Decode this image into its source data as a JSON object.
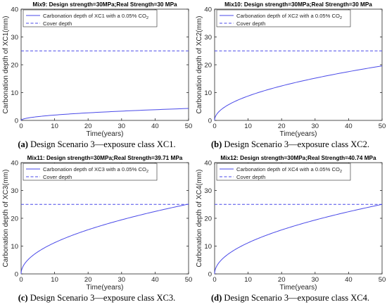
{
  "chart_data": [
    {
      "type": "line",
      "title": "Mix9: Design strength=30MPa;Real Strength=30 MPa",
      "xlabel": "Time(years)",
      "ylabel": "Carbonation depth of XC1(mm)",
      "xlim": [
        0,
        50
      ],
      "ylim": [
        0,
        40
      ],
      "xticks": [
        "0",
        "10",
        "20",
        "30",
        "40",
        "50"
      ],
      "yticks": [
        "0",
        "10",
        "20",
        "30",
        "40"
      ],
      "legend_position": "top-left",
      "series": [
        {
          "name": "Carbonation depth of XC1 with a 0.05% CO2",
          "label_text": "Carbonation depth of XC1 with a 0.05% CO",
          "label_sub": "2",
          "color": "#4a4ae8",
          "style": "solid",
          "model": "sqrt",
          "x": [
            0,
            50
          ],
          "y": [
            0,
            4.3
          ]
        },
        {
          "name": "Cover depth",
          "label_text": "Cover depth",
          "label_sub": "",
          "color": "#4a4ae8",
          "style": "dashed",
          "model": "const",
          "x": [
            0,
            50
          ],
          "y": [
            25,
            25
          ]
        }
      ],
      "caption_tag": "(a)",
      "caption_text": "Design Scenario 3—exposure class XC1."
    },
    {
      "type": "line",
      "title": "Mix10: Design strength=30MPa;Real Strength=30 MPa",
      "xlabel": "Time(years)",
      "ylabel": "Carbonation depth of XC2(mm)",
      "xlim": [
        0,
        50
      ],
      "ylim": [
        0,
        40
      ],
      "xticks": [
        "0",
        "10",
        "20",
        "30",
        "40",
        "50"
      ],
      "yticks": [
        "0",
        "10",
        "20",
        "30",
        "40"
      ],
      "legend_position": "top-left",
      "series": [
        {
          "name": "Carbonation depth of XC2 with a 0.05% CO2",
          "label_text": "Carbonation depth of XC2 with a 0.05% CO",
          "label_sub": "2",
          "color": "#4a4ae8",
          "style": "solid",
          "model": "sqrt",
          "x": [
            0,
            50
          ],
          "y": [
            0,
            19.6
          ]
        },
        {
          "name": "Cover depth",
          "label_text": "Cover depth",
          "label_sub": "",
          "color": "#4a4ae8",
          "style": "dashed",
          "model": "const",
          "x": [
            0,
            50
          ],
          "y": [
            25,
            25
          ]
        }
      ],
      "caption_tag": "(b)",
      "caption_text": "Design Scenario 3—exposure class XC2."
    },
    {
      "type": "line",
      "title": "Mix11: Design strength=30MPa;Real Strength=39.71 MPa",
      "xlabel": "Time(years)",
      "ylabel": "Carbonation depth of XC3(mm)",
      "xlim": [
        0,
        50
      ],
      "ylim": [
        0,
        40
      ],
      "xticks": [
        "0",
        "10",
        "20",
        "30",
        "40",
        "50"
      ],
      "yticks": [
        "0",
        "10",
        "20",
        "30",
        "40"
      ],
      "legend_position": "top-left",
      "series": [
        {
          "name": "Carbonation depth of XC3 with a 0.05% CO2",
          "label_text": "Carbonation depth of XC3 with a 0.05% CO",
          "label_sub": "2",
          "color": "#4a4ae8",
          "style": "solid",
          "model": "sqrt",
          "x": [
            0,
            50
          ],
          "y": [
            0,
            25.1
          ]
        },
        {
          "name": "Cover depth",
          "label_text": "Cover depth",
          "label_sub": "",
          "color": "#4a4ae8",
          "style": "dashed",
          "model": "const",
          "x": [
            0,
            50
          ],
          "y": [
            25,
            25
          ]
        }
      ],
      "caption_tag": "(c)",
      "caption_text": "Design Scenario 3—exposure class XC3."
    },
    {
      "type": "line",
      "title": "Mix12: Design strength=30MPa;Real Strength=40.74 MPa",
      "xlabel": "Time(years)",
      "ylabel": "Carbonation depth of XC4(mm)",
      "xlim": [
        0,
        50
      ],
      "ylim": [
        0,
        40
      ],
      "xticks": [
        "0",
        "10",
        "20",
        "30",
        "40",
        "50"
      ],
      "yticks": [
        "0",
        "10",
        "20",
        "30",
        "40"
      ],
      "legend_position": "top-left",
      "series": [
        {
          "name": "Carbonation depth of XC4 with a 0.05% CO2",
          "label_text": "Carbonation depth of XC4 with a 0.05% CO",
          "label_sub": "2",
          "color": "#4a4ae8",
          "style": "solid",
          "model": "sqrt",
          "x": [
            0,
            50
          ],
          "y": [
            0,
            25.0
          ]
        },
        {
          "name": "Cover depth",
          "label_text": "Cover depth",
          "label_sub": "",
          "color": "#4a4ae8",
          "style": "dashed",
          "model": "const",
          "x": [
            0,
            50
          ],
          "y": [
            25,
            25
          ]
        }
      ],
      "caption_tag": "(d)",
      "caption_text": "Design Scenario 3—exposure class XC4."
    }
  ]
}
